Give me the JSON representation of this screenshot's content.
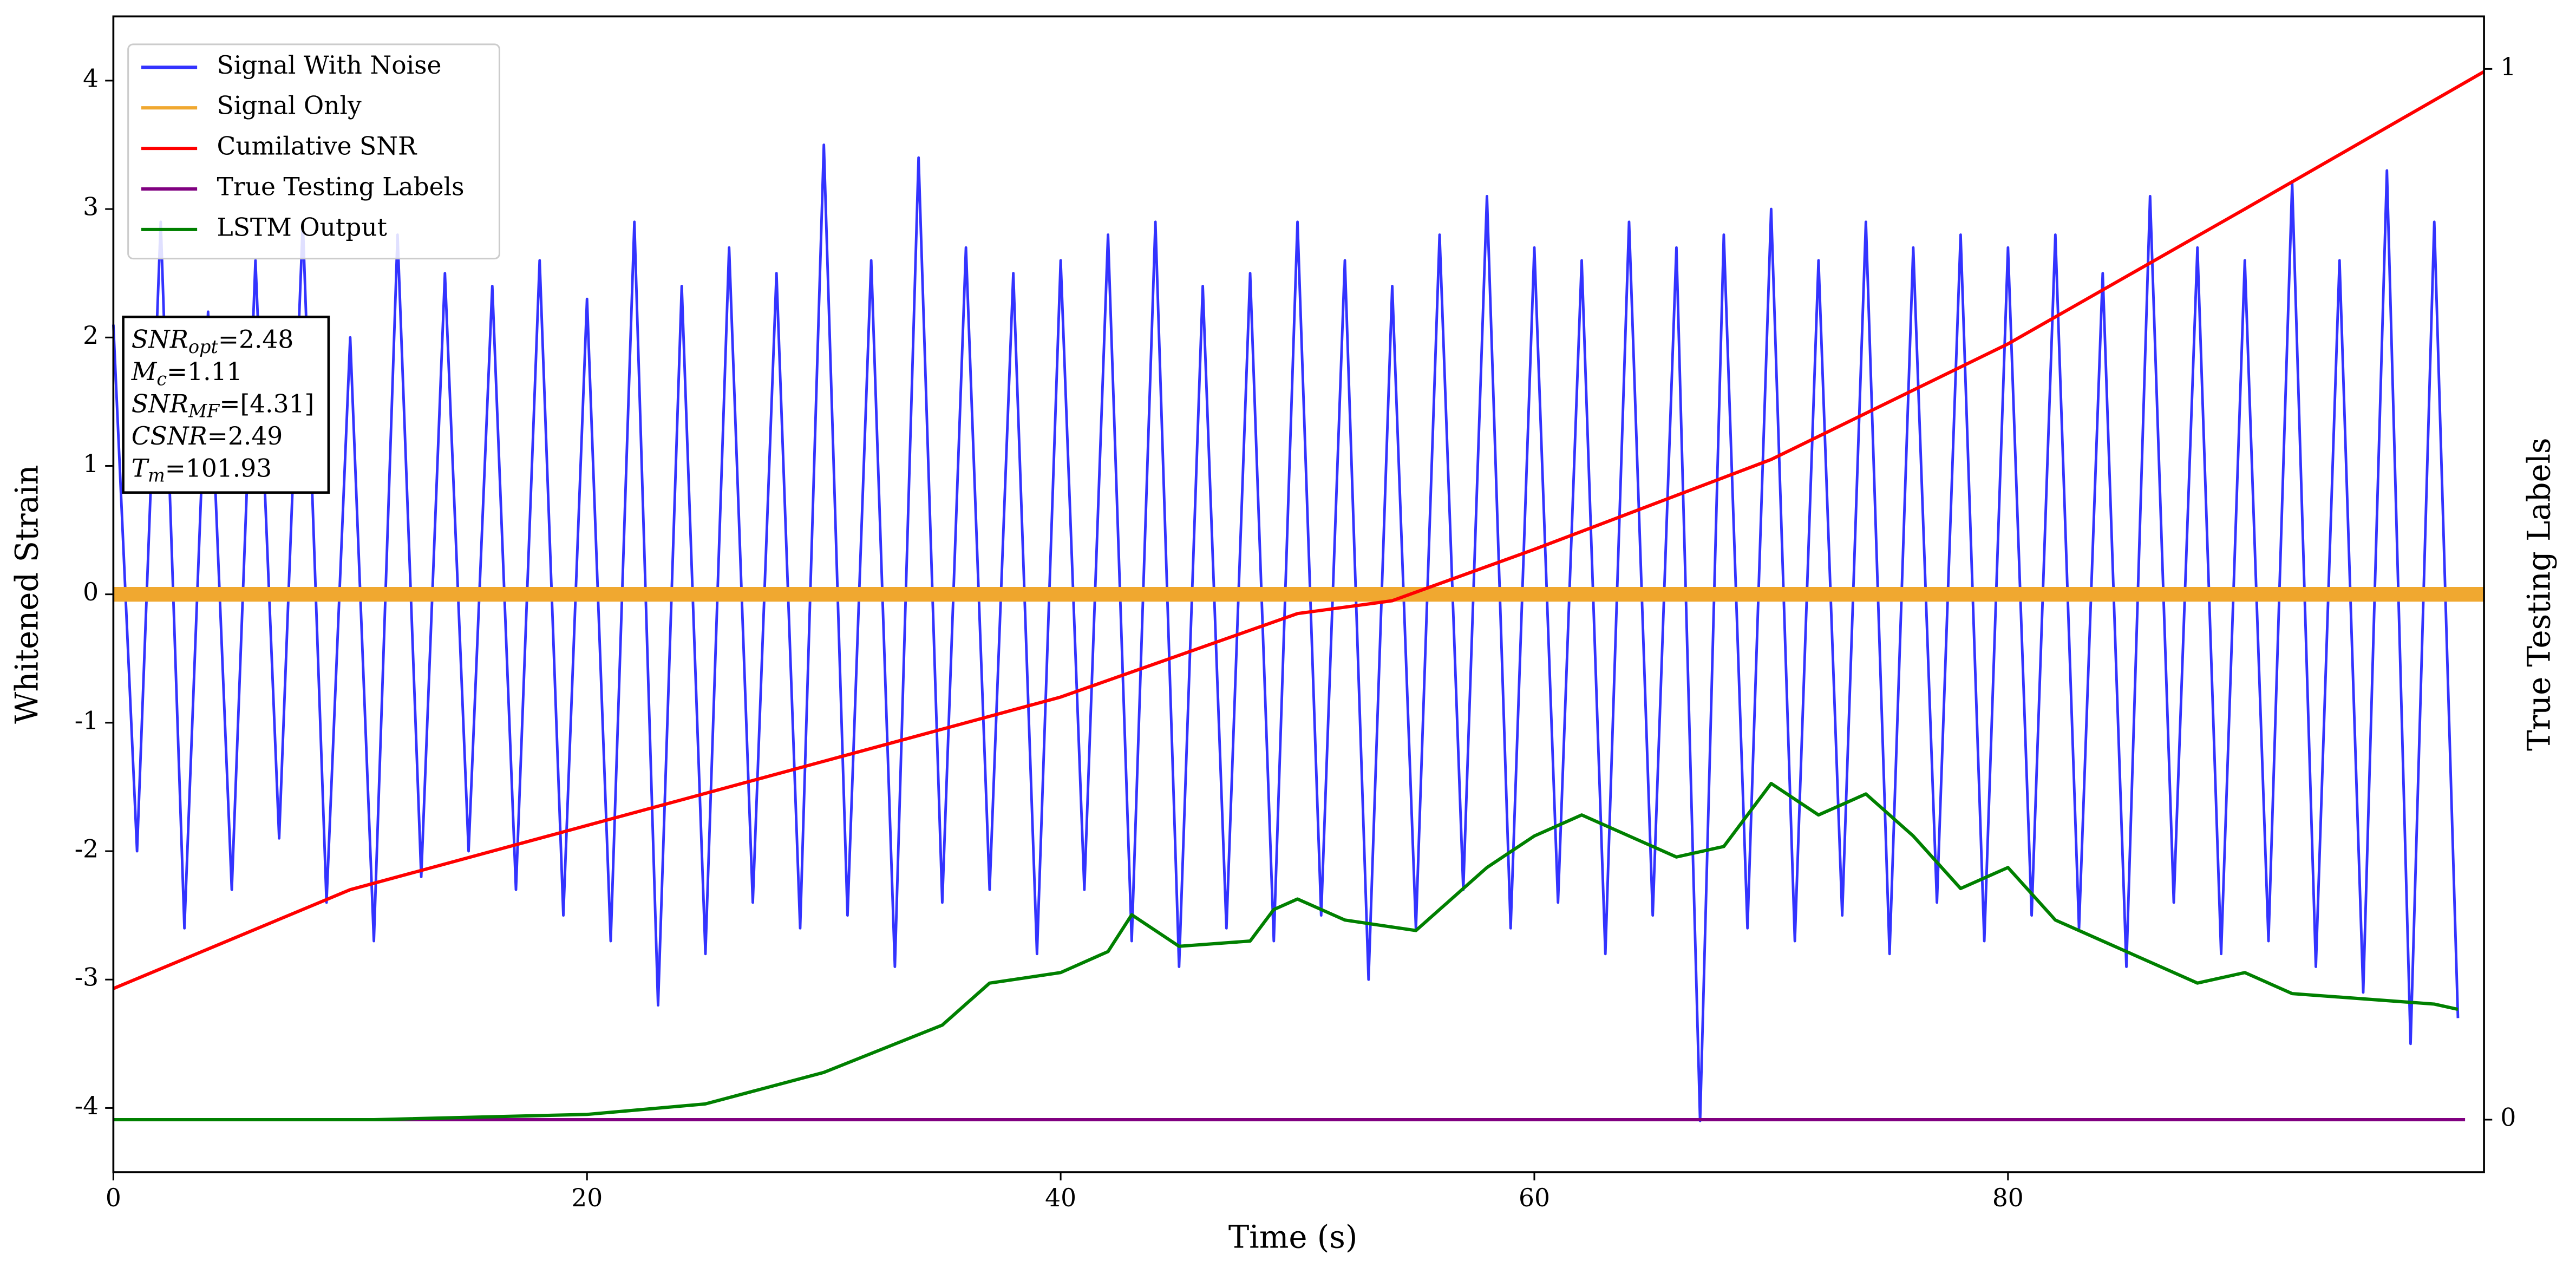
{
  "chart_data": {
    "type": "line",
    "xlabel": "Time (s)",
    "ylabel": "Whitened Strain",
    "y2label": "True Testing Labels",
    "xlim": [
      0,
      100.1
    ],
    "ylim": [
      -4.5,
      4.5
    ],
    "y2lim": [
      -0.05,
      1.05
    ],
    "xticks": [
      0,
      20,
      40,
      60,
      80
    ],
    "yticks": [
      -4,
      -3,
      -2,
      -1,
      0,
      1,
      2,
      3,
      4
    ],
    "y2ticks": [
      0,
      1
    ],
    "legend": "upper-left",
    "series": [
      {
        "name": "Signal With Noise",
        "color": "#3333ff",
        "x": [
          0,
          1,
          2,
          3,
          4,
          5,
          6,
          7,
          8,
          9,
          10,
          11,
          12,
          13,
          14,
          15,
          16,
          17,
          18,
          19,
          20,
          21,
          22,
          23,
          24,
          25,
          26,
          27,
          28,
          29,
          30,
          31,
          32,
          33,
          34,
          35,
          36,
          37,
          38,
          39,
          40,
          41,
          42,
          43,
          44,
          45,
          46,
          47,
          48,
          49,
          50,
          51,
          52,
          53,
          54,
          55,
          56,
          57,
          58,
          59,
          60,
          61,
          62,
          63,
          64,
          65,
          66,
          67,
          68,
          69,
          70,
          71,
          72,
          73,
          74,
          75,
          76,
          77,
          78,
          79,
          80,
          81,
          82,
          83,
          84,
          85,
          86,
          87,
          88,
          89,
          90,
          91,
          92,
          93,
          94,
          95,
          96,
          97,
          98,
          99
        ],
        "values": [
          2.1,
          -2.0,
          2.9,
          -2.6,
          2.2,
          -2.3,
          2.6,
          -1.9,
          2.9,
          -2.4,
          2.0,
          -2.7,
          2.8,
          -2.2,
          2.5,
          -2.0,
          2.4,
          -2.3,
          2.6,
          -2.5,
          2.3,
          -2.7,
          2.9,
          -3.2,
          2.4,
          -2.8,
          2.7,
          -2.4,
          2.5,
          -2.6,
          3.5,
          -2.5,
          2.6,
          -2.9,
          3.4,
          -2.4,
          2.7,
          -2.3,
          2.5,
          -2.8,
          2.6,
          -2.3,
          2.8,
          -2.7,
          2.9,
          -2.9,
          2.4,
          -2.6,
          2.5,
          -2.7,
          2.9,
          -2.5,
          2.6,
          -3.0,
          2.4,
          -2.6,
          2.8,
          -2.3,
          3.1,
          -2.6,
          2.7,
          -2.4,
          2.6,
          -2.8,
          2.9,
          -2.5,
          2.7,
          -4.1,
          2.8,
          -2.6,
          3.0,
          -2.7,
          2.6,
          -2.5,
          2.9,
          -2.8,
          2.7,
          -2.4,
          2.8,
          -2.7,
          2.7,
          -2.5,
          2.8,
          -2.6,
          2.5,
          -2.9,
          3.1,
          -2.4,
          2.7,
          -2.8,
          2.6,
          -2.7,
          3.2,
          -2.9,
          2.6,
          -3.1,
          3.3,
          -3.5,
          2.9,
          -3.3
        ]
      },
      {
        "name": "Signal Only",
        "color": "#f0a830",
        "x": [
          0,
          50,
          100.1
        ],
        "values": [
          0,
          0,
          0
        ]
      },
      {
        "name": "Cumilative SNR",
        "color": "#ff0000",
        "x": [
          0,
          10,
          20,
          30,
          40,
          50,
          54,
          60,
          70,
          80,
          90,
          100.1
        ],
        "values": [
          -3.07,
          -2.3,
          -1.8,
          -1.3,
          -0.8,
          -0.15,
          -0.05,
          0.35,
          1.05,
          1.95,
          3.0,
          4.07
        ]
      },
      {
        "name": "True Testing Labels",
        "color": "#800080",
        "axis": "y2",
        "x": [
          0,
          99.3
        ],
        "values": [
          0,
          0
        ]
      },
      {
        "name": "LSTM Output",
        "color": "#008000",
        "axis": "y2",
        "x": [
          0,
          11,
          20,
          25,
          30,
          35,
          37,
          40,
          42,
          43,
          45,
          48,
          49,
          50,
          52,
          55,
          58,
          60,
          62,
          64,
          66,
          68,
          70,
          72,
          74,
          76,
          78,
          80,
          82,
          84,
          86,
          88,
          90,
          92,
          95,
          98,
          99
        ],
        "values": [
          0,
          0,
          0.005,
          0.015,
          0.045,
          0.09,
          0.13,
          0.14,
          0.16,
          0.195,
          0.165,
          0.17,
          0.2,
          0.21,
          0.19,
          0.18,
          0.24,
          0.27,
          0.29,
          0.27,
          0.25,
          0.26,
          0.32,
          0.29,
          0.31,
          0.27,
          0.22,
          0.24,
          0.19,
          0.17,
          0.15,
          0.13,
          0.14,
          0.12,
          0.115,
          0.11,
          0.105
        ]
      }
    ],
    "annotation": [
      {
        "symbol": "SNR",
        "subscript": "opt",
        "text": "=2.48"
      },
      {
        "symbol": "M",
        "subscript": "c",
        "text": "=1.11"
      },
      {
        "symbol": "SNR",
        "subscript": "MF",
        "text": "=[4.31]"
      },
      {
        "symbol": "CSNR",
        "text": "=2.49"
      },
      {
        "symbol": "T",
        "subscript": "m",
        "text": "=101.93"
      }
    ]
  }
}
